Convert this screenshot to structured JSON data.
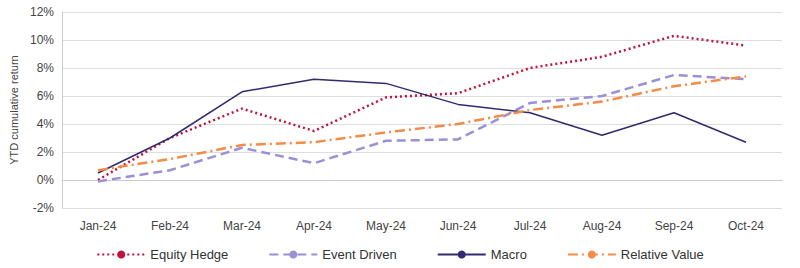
{
  "chart_data": {
    "type": "line",
    "y_label": "YTD cumulative return",
    "categories": [
      "Jan-24",
      "Feb-24",
      "Mar-24",
      "Apr-24",
      "May-24",
      "Jun-24",
      "Jul-24",
      "Aug-24",
      "Sep-24",
      "Oct-24"
    ],
    "series": [
      {
        "name": "Equity Hedge",
        "color": "#c0143c",
        "line_style": "dotted",
        "values": [
          0.0,
          3.0,
          5.1,
          3.5,
          5.9,
          6.2,
          8.0,
          8.8,
          10.3,
          9.6
        ]
      },
      {
        "name": "Event Driven",
        "color": "#9a90d6",
        "line_style": "dashed",
        "values": [
          -0.1,
          0.7,
          2.3,
          1.2,
          2.8,
          2.9,
          5.5,
          6.0,
          7.5,
          7.2
        ]
      },
      {
        "name": "Macro",
        "color": "#302a6e",
        "line_style": "solid",
        "values": [
          0.5,
          3.0,
          6.3,
          7.2,
          6.9,
          5.4,
          4.8,
          3.2,
          4.8,
          2.7
        ]
      },
      {
        "name": "Relative Value",
        "color": "#f28c48",
        "line_style": "dashdot",
        "values": [
          0.7,
          1.5,
          2.5,
          2.7,
          3.4,
          4.0,
          5.0,
          5.6,
          6.7,
          7.4
        ]
      }
    ],
    "ylim": [
      -2,
      12
    ],
    "yticks": [
      {
        "value": -2,
        "label": "-2%"
      },
      {
        "value": 0,
        "label": "0%"
      },
      {
        "value": 2,
        "label": "2%"
      },
      {
        "value": 4,
        "label": "4%"
      },
      {
        "value": 6,
        "label": "6%"
      },
      {
        "value": 8,
        "label": "8%"
      },
      {
        "value": 10,
        "label": "10%"
      },
      {
        "value": 12,
        "label": "12%"
      }
    ],
    "grid": true,
    "legend": "bottom"
  }
}
